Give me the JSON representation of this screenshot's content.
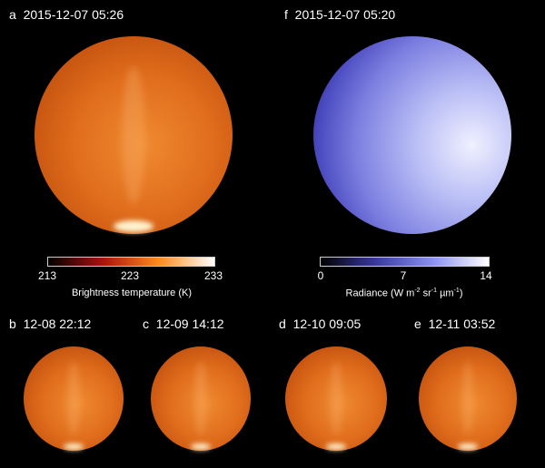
{
  "panels": {
    "a": {
      "letter": "a",
      "time": "2015-12-07 05:26"
    },
    "f": {
      "letter": "f",
      "time": "2015-12-07 05:20"
    },
    "b": {
      "letter": "b",
      "time": "12-08 22:12"
    },
    "c": {
      "letter": "c",
      "time": "12-09 14:12"
    },
    "d": {
      "letter": "d",
      "time": "12-10 09:05"
    },
    "e": {
      "letter": "e",
      "time": "12-11 03:52"
    }
  },
  "colorbar_temp": {
    "ticks": [
      "213",
      "223",
      "233"
    ],
    "label": "Brightness temperature (K)",
    "colors": [
      "#000000",
      "#b01010",
      "#ff8c1a",
      "#ffffff"
    ]
  },
  "colorbar_rad": {
    "ticks": [
      "0",
      "7",
      "14"
    ],
    "label_main": "Radiance (W m",
    "sup1": "-2",
    "mid1": " sr",
    "sup2": "-1",
    "mid2": " µm",
    "sup3": "-1",
    "end": ")",
    "colors": [
      "#000000",
      "#3a3aa0",
      "#8a90f0",
      "#ffffff"
    ]
  }
}
